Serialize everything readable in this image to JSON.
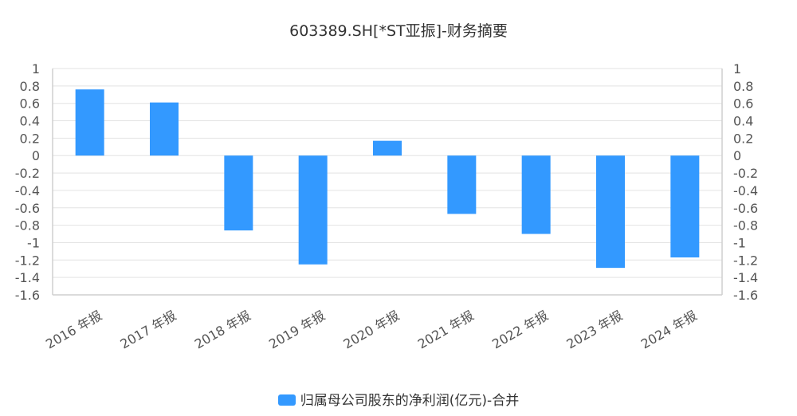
{
  "chart_data": {
    "type": "bar",
    "title": "603389.SH[*ST亚振]-财务摘要",
    "categories": [
      "2016 年报",
      "2017 年报",
      "2018 年报",
      "2019 年报",
      "2020 年报",
      "2021 年报",
      "2022 年报",
      "2023 年报",
      "2024 年报"
    ],
    "series": [
      {
        "name": "归属母公司股东的净利润(亿元)-合并",
        "values": [
          0.76,
          0.61,
          -0.86,
          -1.25,
          0.17,
          -0.67,
          -0.9,
          -1.29,
          -1.17
        ],
        "color": "#3399ff"
      }
    ],
    "ylim": [
      -1.6,
      1
    ],
    "y_ticks": [
      "1",
      "0.8",
      "0.6",
      "0.4",
      "0.2",
      "0",
      "-0.2",
      "-0.4",
      "-0.6",
      "-0.8",
      "-1",
      "-1.2",
      "-1.4",
      "-1.6"
    ],
    "right_y_ticks": [
      "1",
      "0.8",
      "0.6",
      "0.4",
      "0.2",
      "0",
      "-0.2",
      "-0.4",
      "-0.6",
      "-0.8",
      "-1",
      "-1.2",
      "-1.4",
      "-1.6"
    ],
    "grid": true,
    "legend_position": "bottom"
  }
}
